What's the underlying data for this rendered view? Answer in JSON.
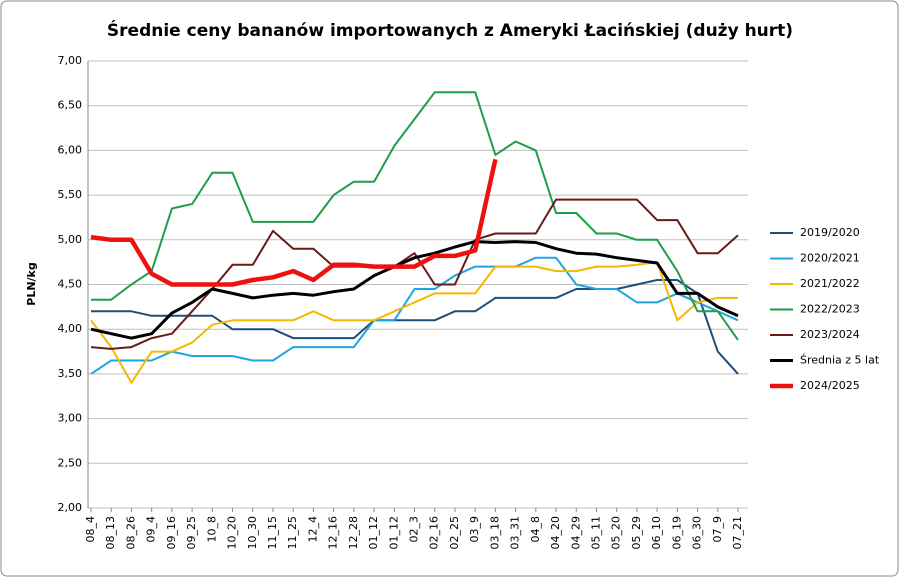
{
  "chart_data": {
    "type": "line",
    "title": "Średnie ceny bananów importowanych z Ameryki Łacińskiej (duży hurt)",
    "y_label": "PLN/kg",
    "categories": [
      "08_4",
      "08_13",
      "08_26",
      "09_4",
      "09_16",
      "09_25",
      "10_8",
      "10_20",
      "10_30",
      "11_15",
      "11_25",
      "12_4",
      "12_16",
      "12_28",
      "01_12",
      "01_12",
      "02_3",
      "02_16",
      "02_25",
      "03_9",
      "03_18",
      "03_31",
      "04_8",
      "04_20",
      "04_29",
      "05_11",
      "05_20",
      "05_29",
      "06_10",
      "06_19",
      "06_30",
      "07_9",
      "07_21"
    ],
    "series": [
      {
        "name": "2019/2020",
        "color": "#1f4e79",
        "values": [
          4.2,
          4.2,
          4.2,
          4.15,
          4.15,
          4.15,
          4.15,
          4.0,
          4.0,
          4.0,
          3.9,
          3.9,
          3.9,
          3.9,
          4.1,
          4.1,
          4.1,
          4.1,
          4.2,
          4.2,
          4.35,
          4.35,
          4.35,
          4.35,
          4.45,
          4.45,
          4.45,
          4.5,
          4.55,
          4.55,
          4.4,
          3.75,
          3.5
        ]
      },
      {
        "name": "2020/2021",
        "color": "#1fa5e0",
        "values": [
          3.5,
          3.65,
          3.65,
          3.65,
          3.75,
          3.7,
          3.7,
          3.7,
          3.65,
          3.65,
          3.8,
          3.8,
          3.8,
          3.8,
          4.1,
          4.1,
          4.45,
          4.45,
          4.6,
          4.7,
          4.7,
          4.7,
          4.8,
          4.8,
          4.5,
          4.45,
          4.45,
          4.3,
          4.3,
          4.4,
          4.3,
          4.2,
          4.1
        ]
      },
      {
        "name": "2021/2022",
        "color": "#f5b800",
        "values": [
          4.1,
          3.8,
          3.4,
          3.75,
          3.75,
          3.85,
          4.05,
          4.1,
          4.1,
          4.1,
          4.1,
          4.2,
          4.1,
          4.1,
          4.1,
          4.2,
          4.3,
          4.4,
          4.4,
          4.4,
          4.7,
          4.7,
          4.7,
          4.65,
          4.65,
          4.7,
          4.7,
          4.72,
          4.75,
          4.1,
          4.3,
          4.35,
          4.35
        ]
      },
      {
        "name": "2022/2023",
        "color": "#1e9e4a",
        "values": [
          4.33,
          4.33,
          4.5,
          4.65,
          5.35,
          5.4,
          5.75,
          5.75,
          5.2,
          5.2,
          5.2,
          5.2,
          5.5,
          5.65,
          5.65,
          6.05,
          6.35,
          6.65,
          6.65,
          6.65,
          5.95,
          6.1,
          6.0,
          5.3,
          5.3,
          5.07,
          5.07,
          5.0,
          5.0,
          4.65,
          4.2,
          4.2,
          3.88
        ]
      },
      {
        "name": "2023/2024",
        "color": "#6b1a1a",
        "values": [
          3.8,
          3.78,
          3.8,
          3.9,
          3.95,
          4.2,
          4.45,
          4.72,
          4.72,
          5.1,
          4.9,
          4.9,
          4.7,
          4.7,
          4.7,
          4.7,
          4.85,
          4.5,
          4.5,
          5.0,
          5.07,
          5.07,
          5.07,
          5.45,
          5.45,
          5.45,
          5.45,
          5.45,
          5.22,
          5.22,
          4.85,
          4.85,
          5.05
        ]
      },
      {
        "name": "Średnia z 5 lat",
        "color": "#000000",
        "values": [
          4.0,
          3.95,
          3.9,
          3.95,
          4.18,
          4.3,
          4.45,
          4.4,
          4.35,
          4.38,
          4.4,
          4.38,
          4.42,
          4.45,
          4.6,
          4.7,
          4.8,
          4.85,
          4.92,
          4.98,
          4.97,
          4.98,
          4.97,
          4.9,
          4.85,
          4.84,
          4.8,
          4.77,
          4.74,
          4.4,
          4.4,
          4.25,
          4.15
        ]
      },
      {
        "name": "2024/2025",
        "color": "#ee1111",
        "values": [
          5.03,
          5.0,
          5.0,
          4.62,
          4.5,
          4.5,
          4.5,
          4.5,
          4.55,
          4.58,
          4.65,
          4.55,
          4.72,
          4.72,
          4.7,
          4.7,
          4.7,
          4.82,
          4.82,
          4.88,
          5.9,
          null,
          null,
          null,
          null,
          null,
          null,
          null,
          null,
          null,
          null,
          null,
          null
        ]
      }
    ],
    "ylim": [
      2,
      7
    ],
    "yticks": [
      {
        "value": 2,
        "label": "2,00"
      },
      {
        "value": 2.5,
        "label": "2,50"
      },
      {
        "value": 3,
        "label": "3,00"
      },
      {
        "value": 3.5,
        "label": "3,50"
      },
      {
        "value": 4,
        "label": "4,00"
      },
      {
        "value": 4.5,
        "label": "4,50"
      },
      {
        "value": 5,
        "label": "5,00"
      },
      {
        "value": 5.5,
        "label": "5,50"
      },
      {
        "value": 6,
        "label": "6,00"
      },
      {
        "value": 6.5,
        "label": "6,50"
      },
      {
        "value": 7,
        "label": "7,00"
      }
    ],
    "grid": true,
    "legend": "right"
  }
}
